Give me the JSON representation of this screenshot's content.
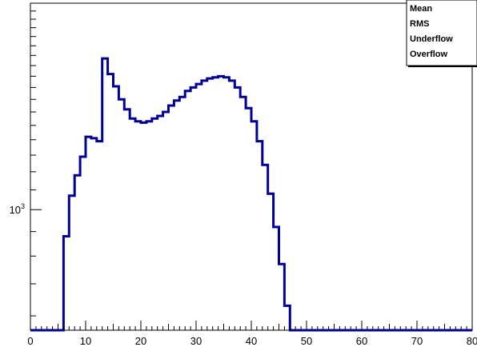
{
  "chart_data": {
    "type": "histogram",
    "xlabel": "",
    "ylabel": "",
    "xlim": [
      0,
      80
    ],
    "ylim": [
      560,
      2700
    ],
    "yscale": "log",
    "xticks": [
      "0",
      "10",
      "20",
      "30",
      "40",
      "50",
      "60",
      "70",
      "80"
    ],
    "ytick_label": {
      "base": "10",
      "exponent": "3",
      "value": 1000
    },
    "series": [
      {
        "line_color": "#000099",
        "bin_edges": [
          0,
          1,
          2,
          3,
          4,
          5,
          6,
          7,
          8,
          9,
          10,
          11,
          12,
          13,
          14,
          15,
          16,
          17,
          18,
          19,
          20,
          21,
          22,
          23,
          24,
          25,
          26,
          27,
          28,
          29,
          30,
          31,
          32,
          33,
          34,
          35,
          36,
          37,
          38,
          39,
          40,
          41,
          42,
          43,
          44,
          45,
          46,
          47,
          80
        ],
        "counts": [
          560,
          560,
          560,
          560,
          560,
          560,
          880,
          1070,
          1180,
          1290,
          1420,
          1410,
          1390,
          2070,
          1920,
          1810,
          1700,
          1620,
          1550,
          1530,
          1520,
          1530,
          1550,
          1570,
          1600,
          1650,
          1690,
          1720,
          1770,
          1800,
          1830,
          1860,
          1880,
          1890,
          1900,
          1890,
          1860,
          1800,
          1720,
          1630,
          1530,
          1390,
          1240,
          1080,
          920,
          770,
          630,
          560
        ]
      }
    ],
    "stats_box": {
      "labels": [
        "Mean",
        "RMS",
        "Underflow",
        "Overflow"
      ],
      "corner": "top-right"
    },
    "grid": false
  }
}
